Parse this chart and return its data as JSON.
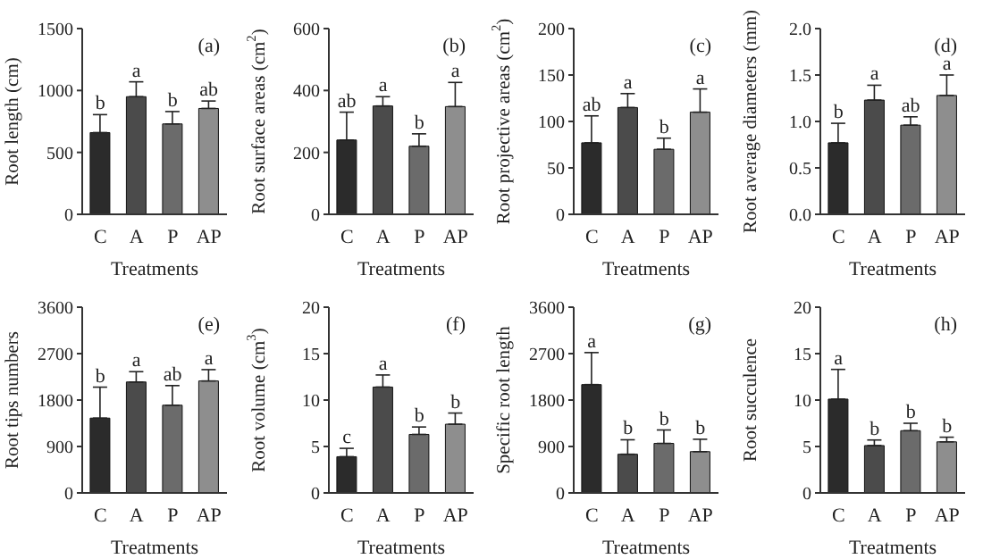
{
  "chart_data": [
    {
      "type": "bar",
      "ylabel": "Root length (cm)",
      "xlabel": "Treatments",
      "categories": [
        "C",
        "A",
        "P",
        "AP"
      ],
      "values": [
        660,
        950,
        730,
        855
      ],
      "colors": [
        "#2b2b2b",
        "#4b4b4b",
        "#6b6b6b",
        "#8e8e8e"
      ],
      "errors": [
        [
          660,
          805
        ],
        [
          950,
          1070
        ],
        [
          730,
          830
        ],
        [
          855,
          915
        ]
      ],
      "ylim": [
        0,
        1500
      ],
      "yticks": [
        0,
        500,
        1000,
        1500
      ],
      "annotations": [
        "(a)",
        {
          "text": "b",
          "x": "C",
          "y": 805
        },
        {
          "text": "a",
          "x": "A",
          "y": 1070
        },
        {
          "text": "b",
          "x": "P",
          "y": 830
        },
        {
          "text": "ab",
          "x": "AP",
          "y": 915
        }
      ]
    },
    {
      "type": "bar",
      "ylabel": "Root surface areas (cm$^{2}$)",
      "xlabel": "Treatments",
      "categories": [
        "C",
        "A",
        "P",
        "AP"
      ],
      "values": [
        240,
        350,
        220,
        348
      ],
      "colors": [
        "#2b2b2b",
        "#4b4b4b",
        "#6b6b6b",
        "#8e8e8e"
      ],
      "errors": [
        [
          240,
          330
        ],
        [
          350,
          380
        ],
        [
          220,
          260
        ],
        [
          348,
          426
        ]
      ],
      "ylim": [
        0,
        600
      ],
      "yticks": [
        0,
        200,
        400,
        600
      ],
      "annotations": [
        "(b)",
        {
          "text": "ab",
          "x": "C",
          "y": 330
        },
        {
          "text": "a",
          "x": "A",
          "y": 380
        },
        {
          "text": "b",
          "x": "P",
          "y": 260
        },
        {
          "text": "a",
          "x": "AP",
          "y": 426
        }
      ]
    },
    {
      "type": "bar",
      "ylabel": "Root projective areas (cm$^{2}$)",
      "xlabel": "Treatments",
      "categories": [
        "C",
        "A",
        "P",
        "AP"
      ],
      "values": [
        77,
        115,
        70,
        110
      ],
      "colors": [
        "#2b2b2b",
        "#4b4b4b",
        "#6b6b6b",
        "#8e8e8e"
      ],
      "errors": [
        [
          77,
          106
        ],
        [
          115,
          130
        ],
        [
          70,
          82
        ],
        [
          110,
          135
        ]
      ],
      "ylim": [
        0,
        200
      ],
      "yticks": [
        0,
        50,
        100,
        150,
        200
      ],
      "annotations": [
        "(c)",
        {
          "text": "ab",
          "x": "C",
          "y": 106
        },
        {
          "text": "a",
          "x": "A",
          "y": 130
        },
        {
          "text": "b",
          "x": "P",
          "y": 82
        },
        {
          "text": "a",
          "x": "AP",
          "y": 135
        }
      ]
    },
    {
      "type": "bar",
      "ylabel": "Root average diameters (mm)",
      "xlabel": "Treatments",
      "categories": [
        "C",
        "A",
        "P",
        "AP"
      ],
      "values": [
        0.77,
        1.23,
        0.96,
        1.28
      ],
      "colors": [
        "#2b2b2b",
        "#4b4b4b",
        "#6b6b6b",
        "#8e8e8e"
      ],
      "errors": [
        [
          0.77,
          0.98
        ],
        [
          1.23,
          1.39
        ],
        [
          0.96,
          1.05
        ],
        [
          1.28,
          1.5
        ]
      ],
      "ylim": [
        0,
        2
      ],
      "yticks": [
        {
          "value": 0,
          "label": "0.0"
        },
        {
          "value": 0.5,
          "label": "0.5"
        },
        {
          "value": 1,
          "label": "1.0"
        },
        {
          "value": 1.5,
          "label": "1.5"
        },
        {
          "value": 2,
          "label": "2.0"
        }
      ],
      "annotations": [
        "(d)",
        {
          "text": "b",
          "x": "C",
          "y": 0.98
        },
        {
          "text": "a",
          "x": "A",
          "y": 1.39
        },
        {
          "text": "ab",
          "x": "P",
          "y": 1.05
        },
        {
          "text": "a",
          "x": "AP",
          "y": 1.5
        }
      ]
    },
    {
      "type": "bar",
      "ylabel": "Root tips numbers",
      "xlabel": "Treatments",
      "categories": [
        "C",
        "A",
        "P",
        "AP"
      ],
      "values": [
        1450,
        2150,
        1700,
        2170
      ],
      "colors": [
        "#2b2b2b",
        "#4b4b4b",
        "#6b6b6b",
        "#8e8e8e"
      ],
      "errors": [
        [
          1450,
          2050
        ],
        [
          2150,
          2350
        ],
        [
          1700,
          2080
        ],
        [
          2170,
          2390
        ]
      ],
      "ylim": [
        0,
        3600
      ],
      "yticks": [
        0,
        900,
        1800,
        2700,
        3600
      ],
      "annotations": [
        "(e)",
        {
          "text": "b",
          "x": "C",
          "y": 2050
        },
        {
          "text": "a",
          "x": "A",
          "y": 2350
        },
        {
          "text": "ab",
          "x": "P",
          "y": 2080
        },
        {
          "text": "a",
          "x": "AP",
          "y": 2390
        }
      ]
    },
    {
      "type": "bar",
      "ylabel": "Root volume (cm$^{3}$)",
      "xlabel": "Treatments",
      "categories": [
        "C",
        "A",
        "P",
        "AP"
      ],
      "values": [
        3.9,
        11.4,
        6.3,
        7.4
      ],
      "colors": [
        "#2b2b2b",
        "#4b4b4b",
        "#6b6b6b",
        "#8e8e8e"
      ],
      "errors": [
        [
          3.9,
          4.8
        ],
        [
          11.4,
          12.7
        ],
        [
          6.3,
          7.1
        ],
        [
          7.4,
          8.6
        ]
      ],
      "ylim": [
        0,
        20
      ],
      "yticks": [
        0,
        5,
        10,
        15,
        20
      ],
      "annotations": [
        "(f)",
        {
          "text": "c",
          "x": "C",
          "y": 4.8
        },
        {
          "text": "a",
          "x": "A",
          "y": 12.7
        },
        {
          "text": "b",
          "x": "P",
          "y": 7.1
        },
        {
          "text": "b",
          "x": "AP",
          "y": 8.6
        }
      ]
    },
    {
      "type": "bar",
      "ylabel": "Specific root length",
      "xlabel": "Treatments",
      "categories": [
        "C",
        "A",
        "P",
        "AP"
      ],
      "values": [
        2100,
        750,
        960,
        800
      ],
      "colors": [
        "#2b2b2b",
        "#4b4b4b",
        "#6b6b6b",
        "#8e8e8e"
      ],
      "errors": [
        [
          2100,
          2720
        ],
        [
          750,
          1030
        ],
        [
          960,
          1220
        ],
        [
          800,
          1040
        ]
      ],
      "ylim": [
        0,
        3600
      ],
      "yticks": [
        0,
        900,
        1800,
        2700,
        3600
      ],
      "annotations": [
        "(g)",
        {
          "text": "a",
          "x": "C",
          "y": 2720
        },
        {
          "text": "b",
          "x": "A",
          "y": 1030
        },
        {
          "text": "b",
          "x": "P",
          "y": 1220
        },
        {
          "text": "b",
          "x": "AP",
          "y": 1040
        }
      ]
    },
    {
      "type": "bar",
      "ylabel": "Root succulence",
      "xlabel": "Treatments",
      "categories": [
        "C",
        "A",
        "P",
        "AP"
      ],
      "values": [
        10.1,
        5.1,
        6.7,
        5.5
      ],
      "colors": [
        "#2b2b2b",
        "#4b4b4b",
        "#6b6b6b",
        "#8e8e8e"
      ],
      "errors": [
        [
          10.1,
          13.3
        ],
        [
          5.1,
          5.7
        ],
        [
          6.7,
          7.5
        ],
        [
          5.5,
          6
        ]
      ],
      "ylim": [
        0,
        20
      ],
      "yticks": [
        0,
        5,
        10,
        15,
        20
      ],
      "annotations": [
        "(h)",
        {
          "text": "a",
          "x": "C",
          "y": 13.3
        },
        {
          "text": "b",
          "x": "A",
          "y": 5.7
        },
        {
          "text": "b",
          "x": "P",
          "y": 7.5
        },
        {
          "text": "b",
          "x": "AP",
          "y": 6
        }
      ]
    }
  ]
}
